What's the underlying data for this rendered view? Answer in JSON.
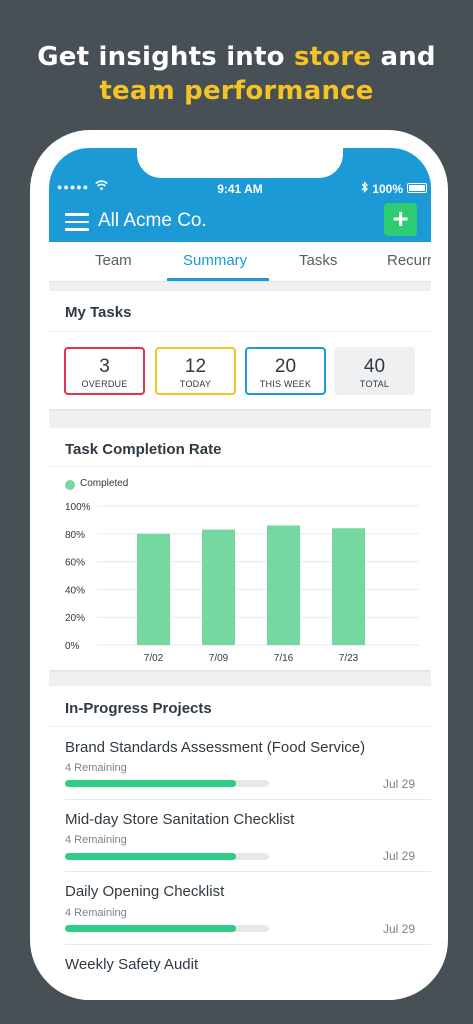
{
  "headline": {
    "line1_prefix": "Get insights into ",
    "line1_accent": "store",
    "line1_suffix": " and",
    "line2_accent": "team performance"
  },
  "status_bar": {
    "signal": "●●●●●",
    "time": "9:41 AM",
    "battery": "100%"
  },
  "header": {
    "title": "All Acme Co.",
    "add_label": "+"
  },
  "tabs": [
    {
      "label": "Team",
      "active": false
    },
    {
      "label": "Summary",
      "active": true
    },
    {
      "label": "Tasks",
      "active": false
    },
    {
      "label": "Recurri",
      "active": false
    }
  ],
  "my_tasks": {
    "title": "My Tasks",
    "stats": [
      {
        "value": "3",
        "label": "OVERDUE",
        "border": "#e0344e",
        "bg": "#ffffff"
      },
      {
        "value": "12",
        "label": "TODAY",
        "border": "#f5c323",
        "bg": "#ffffff"
      },
      {
        "value": "20",
        "label": "THIS WEEK",
        "border": "#1c9ad6",
        "bg": "#ffffff"
      },
      {
        "value": "40",
        "label": "TOTAL",
        "border": "#eef0f1",
        "bg": "#eef0f1"
      }
    ]
  },
  "completion": {
    "title": "Task Completion Rate",
    "legend": "Completed"
  },
  "chart_data": {
    "type": "bar",
    "categories": [
      "7/02",
      "7/09",
      "7/16",
      "7/23"
    ],
    "series": [
      {
        "name": "Completed",
        "values": [
          80,
          83,
          86,
          84
        ],
        "color": "#75d8a0"
      }
    ],
    "yticks": [
      "100%",
      "80%",
      "60%",
      "40%",
      "20%",
      "0%"
    ],
    "ylim": [
      0,
      100
    ],
    "grid": true,
    "legend": "top-left"
  },
  "projects": {
    "title": "In-Progress Projects",
    "items": [
      {
        "name": "Brand Standards Assessment (Food Service)",
        "remaining": "4 Remaining",
        "progress": 0.84,
        "date": "Jul 29"
      },
      {
        "name": "Mid-day Store Sanitation Checklist",
        "remaining": "4 Remaining",
        "progress": 0.84,
        "date": "Jul 29"
      },
      {
        "name": "Daily Opening Checklist",
        "remaining": "4 Remaining",
        "progress": 0.84,
        "date": "Jul 29"
      },
      {
        "name": "Weekly Safety Audit"
      }
    ]
  }
}
